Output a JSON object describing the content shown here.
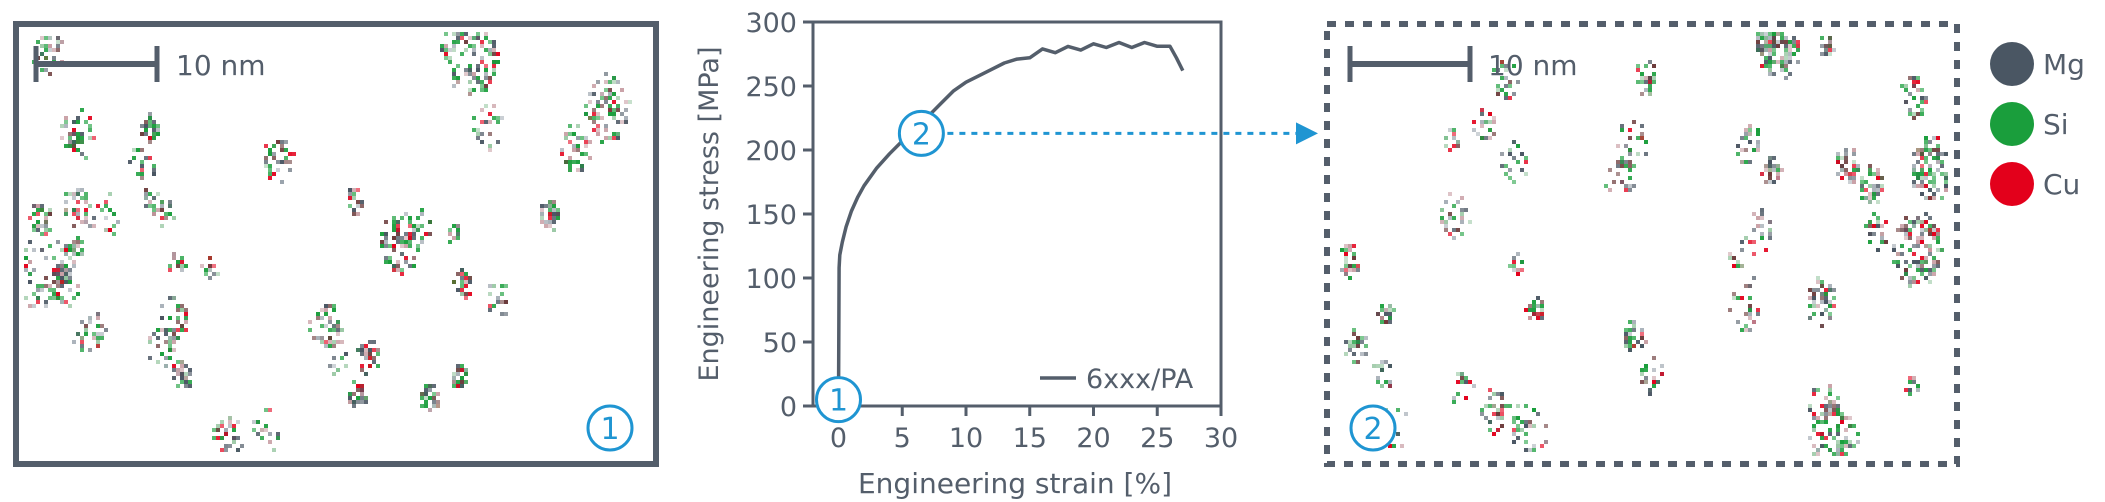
{
  "left_panel": {
    "scalebar_label": "10 nm",
    "marker_label": "1",
    "clusters_seed": 17
  },
  "right_panel": {
    "scalebar_label": "10 nm",
    "marker_label": "2",
    "clusters_seed": 29
  },
  "legend": {
    "items": [
      {
        "label": "Mg",
        "color": "#4a5663"
      },
      {
        "label": "Si",
        "color": "#1a9e3c"
      },
      {
        "label": "Cu",
        "color": "#e3001b"
      }
    ]
  },
  "colors": {
    "frame": "#545e6b",
    "curve": "#545e6b",
    "accent": "#1f95d2",
    "mg": "#4a5663",
    "si": "#1a9e3c",
    "cu": "#e3001b"
  },
  "chart_data": {
    "type": "line",
    "xlabel": "Engineering strain [%]",
    "ylabel": "Engineering stress [MPa]",
    "xlim": [
      -2,
      30
    ],
    "ylim": [
      0,
      300
    ],
    "xticks": [
      0,
      5,
      10,
      15,
      20,
      25,
      30
    ],
    "yticks": [
      0,
      50,
      100,
      150,
      200,
      250,
      300
    ],
    "grid": false,
    "legend_position": "bottom-right",
    "series": [
      {
        "name": "6xxx/PA",
        "x": [
          0,
          0.05,
          0.1,
          0.3,
          0.6,
          1.0,
          1.5,
          2,
          3,
          4,
          5,
          6,
          7,
          8,
          9,
          10,
          11,
          12,
          13,
          14,
          15,
          16,
          17,
          18,
          19,
          20,
          21,
          22,
          23,
          24,
          25,
          26,
          26.5,
          27
        ],
        "y": [
          0,
          108,
          118,
          128,
          140,
          152,
          163,
          172,
          186,
          197,
          207,
          216,
          226,
          236,
          246,
          253,
          258,
          263,
          268,
          271,
          274,
          277,
          278,
          279,
          280,
          281,
          282,
          282,
          282,
          282,
          283,
          281,
          272,
          262
        ]
      }
    ],
    "annotations": [
      {
        "label": "1",
        "x": 0,
        "y": 5
      },
      {
        "label": "2",
        "x": 6.5,
        "y": 213
      }
    ]
  }
}
